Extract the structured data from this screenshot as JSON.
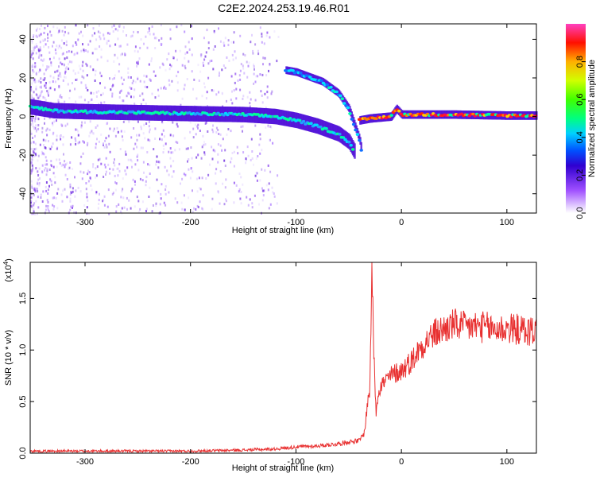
{
  "figure_title": "C2E2.2024.253.19.46.R01",
  "chart_data": [
    {
      "type": "heatmap",
      "xlabel": "Height of straight line (km)",
      "ylabel": "Frequency (Hz)",
      "xlim": [
        -352,
        128
      ],
      "ylim": [
        -50,
        48
      ],
      "x_ticks": [
        -300,
        -200,
        -100,
        0,
        100
      ],
      "y_ticks": [
        -40,
        -20,
        0,
        20,
        40
      ],
      "colorbar": {
        "label": "Normalized spectral amplitude",
        "range": [
          0,
          1
        ],
        "ticks": [
          "0.0",
          "0.2",
          "0.4",
          "0.6",
          "0.8"
        ],
        "colormap": [
          "#ffffff",
          "#b060ff",
          "#3000d0",
          "#00a0ff",
          "#00ffff",
          "#00ff40",
          "#c8ff00",
          "#ffb000",
          "#ff0000",
          "#ff40c0"
        ]
      },
      "main_trace": [
        {
          "x": -352,
          "y": 5
        },
        {
          "x": -330,
          "y": 3
        },
        {
          "x": -300,
          "y": 2.5
        },
        {
          "x": -250,
          "y": 2
        },
        {
          "x": -200,
          "y": 1.5
        },
        {
          "x": -150,
          "y": 1
        },
        {
          "x": -120,
          "y": 0
        },
        {
          "x": -100,
          "y": -2
        },
        {
          "x": -80,
          "y": -5
        },
        {
          "x": -60,
          "y": -9
        },
        {
          "x": -50,
          "y": -13
        },
        {
          "x": -45,
          "y": -18
        }
      ],
      "upper_branch": [
        {
          "x": -110,
          "y": 24
        },
        {
          "x": -100,
          "y": 23
        },
        {
          "x": -90,
          "y": 21
        },
        {
          "x": -75,
          "y": 18
        },
        {
          "x": -60,
          "y": 12
        },
        {
          "x": -50,
          "y": 4
        },
        {
          "x": -45,
          "y": -4
        },
        {
          "x": -40,
          "y": -12
        },
        {
          "x": -38,
          "y": -18
        }
      ],
      "carrier_line": [
        {
          "x": -40,
          "y": -2
        },
        {
          "x": -30,
          "y": -1
        },
        {
          "x": -10,
          "y": 0
        },
        {
          "x": -5,
          "y": 4
        },
        {
          "x": 0,
          "y": 1
        },
        {
          "x": 50,
          "y": 1
        },
        {
          "x": 100,
          "y": 0.5
        },
        {
          "x": 128,
          "y": 0.5
        }
      ]
    },
    {
      "type": "line",
      "xlabel": "Height of straight line (km)",
      "ylabel": "SNR (10 * v/v)",
      "y_multiplier": "(x10",
      "y_multiplier_exp": "4",
      "xlim": [
        -352,
        128
      ],
      "ylim": [
        0,
        1.85
      ],
      "x_ticks": [
        -300,
        -200,
        -100,
        0,
        100
      ],
      "y_ticks": [
        "0.0",
        "0.5",
        "1.0",
        "1.5"
      ],
      "color": "#e83030",
      "series": [
        {
          "x": [
            -352,
            -300,
            -250,
            -200,
            -150,
            -120,
            -100,
            -80,
            -60,
            -50,
            -40,
            -35,
            -32,
            -30,
            -28,
            -26,
            -24,
            -22,
            -20,
            -15,
            -10,
            -5,
            0,
            10,
            20,
            30,
            40,
            50,
            60,
            70,
            80,
            90,
            100,
            110,
            120,
            128
          ],
          "y": [
            0.02,
            0.02,
            0.02,
            0.02,
            0.03,
            0.04,
            0.06,
            0.07,
            0.09,
            0.11,
            0.12,
            0.2,
            0.5,
            0.6,
            1.85,
            0.9,
            0.4,
            0.6,
            0.65,
            0.7,
            0.75,
            0.78,
            0.8,
            0.9,
            1.05,
            1.15,
            1.2,
            1.25,
            1.22,
            1.23,
            1.22,
            1.2,
            1.21,
            1.2,
            1.18,
            1.2
          ]
        }
      ]
    }
  ]
}
